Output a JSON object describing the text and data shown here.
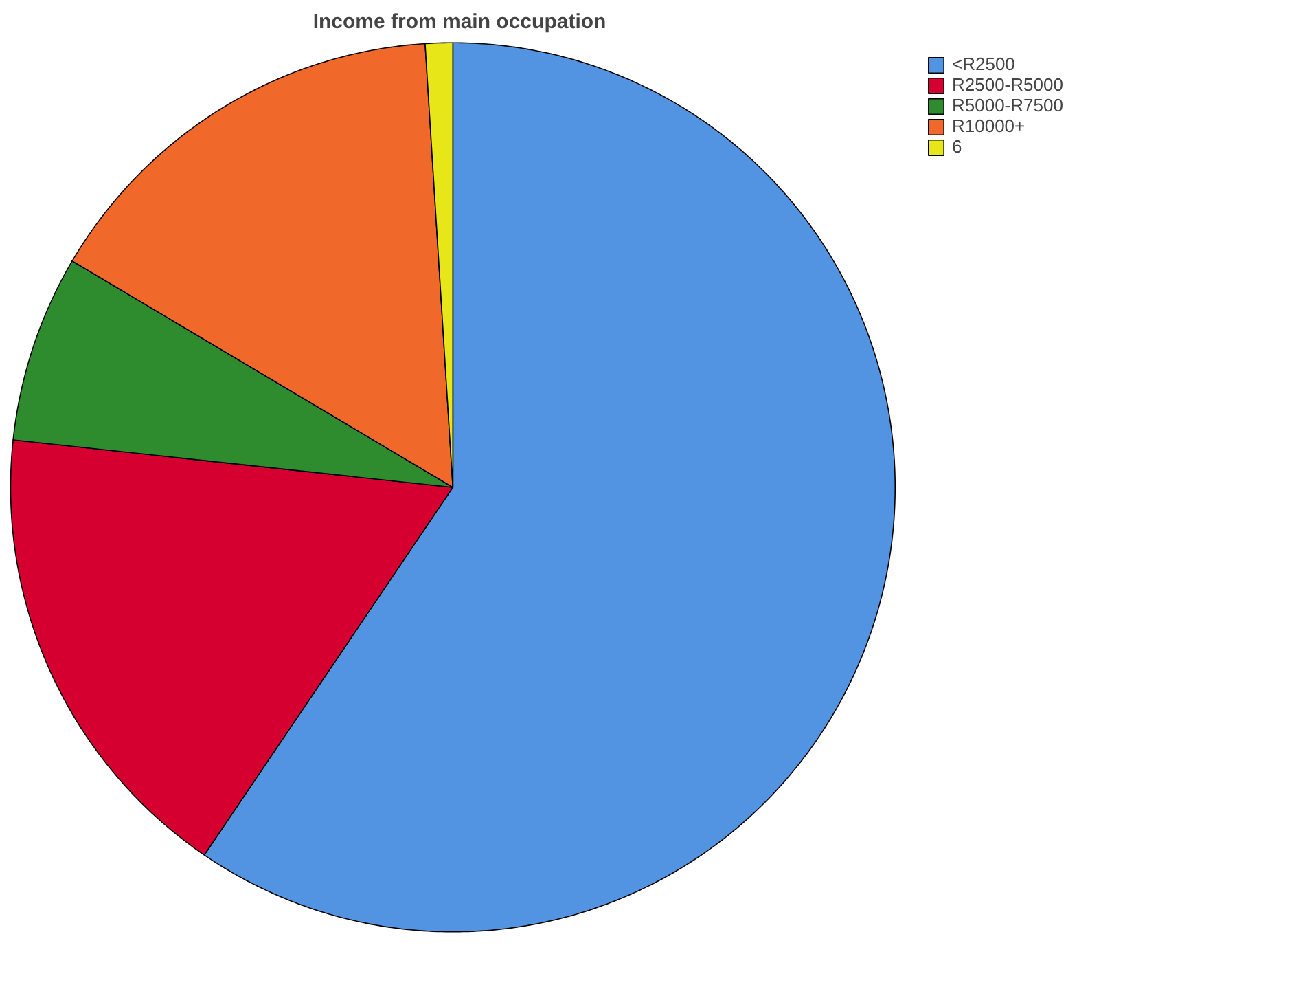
{
  "chart_data": {
    "type": "pie",
    "title": "Income from main occupation",
    "categories": [
      "<R2500",
      "R2500-R5000",
      "R5000-R7500",
      "R10000+",
      "6"
    ],
    "values": [
      59.5,
      17.2,
      6.8,
      15.5,
      1.0
    ],
    "colors": [
      "#5294e2",
      "#d5002f",
      "#2e8b2e",
      "#f0692a",
      "#e6e619"
    ],
    "legend": "top right"
  }
}
